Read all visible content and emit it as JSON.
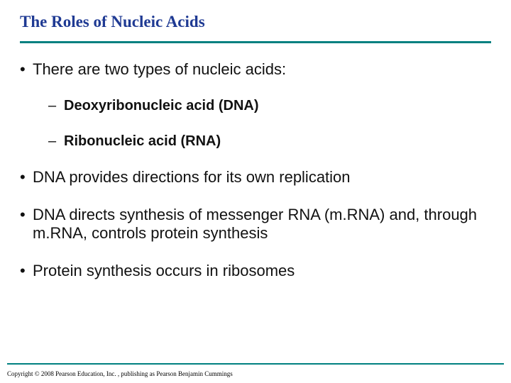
{
  "colors": {
    "title": "#1f3a93",
    "rule": "#008080",
    "text": "#111111",
    "background": "#ffffff"
  },
  "typography": {
    "title_fontsize": 23,
    "body_fontsize": 22,
    "sub_fontsize": 20,
    "copyright_fontsize": 9
  },
  "title": "The Roles of Nucleic Acids",
  "bullets": {
    "b1": "There are two types of nucleic acids:",
    "s1": "Deoxyribonucleic acid (DNA)",
    "s2": "Ribonucleic acid (RNA)",
    "b2": "DNA provides directions for its own replication",
    "b3": "DNA directs synthesis of messenger RNA (m.RNA) and, through m.RNA, controls protein synthesis",
    "b4": "Protein synthesis occurs in ribosomes"
  },
  "copyright": "Copyright © 2008 Pearson Education, Inc. , publishing as Pearson Benjamin Cummings"
}
